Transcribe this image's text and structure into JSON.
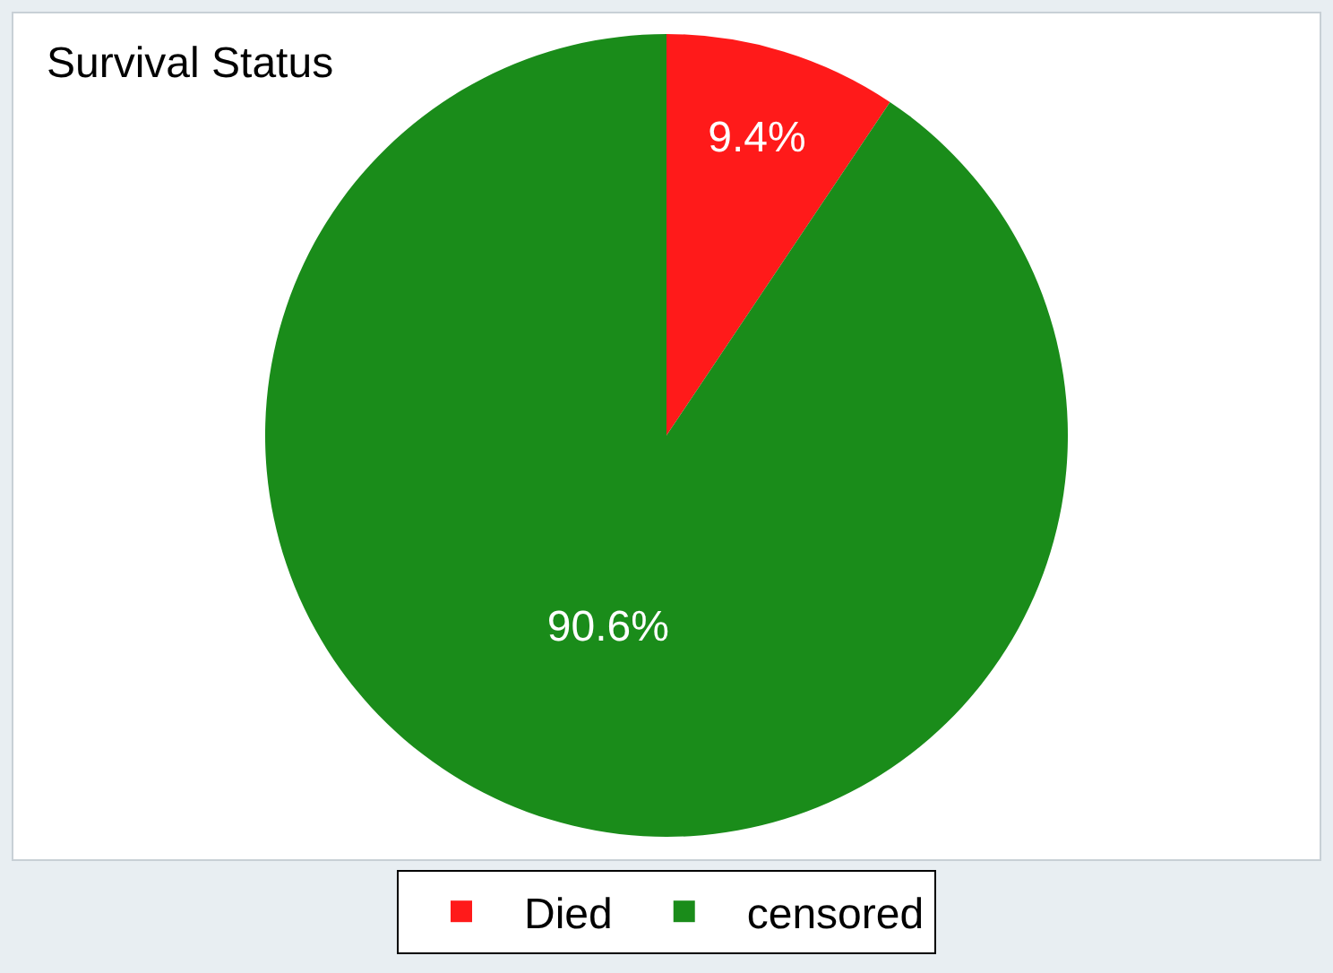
{
  "chart_data": {
    "type": "pie",
    "title": "Survival Status",
    "categories": [
      "Died",
      "censored"
    ],
    "values": [
      9.4,
      90.6
    ],
    "colors": [
      "#ff1a1a",
      "#1a8c1a"
    ],
    "value_labels": [
      "9.4%",
      "90.6%"
    ],
    "legend": "bottom"
  }
}
